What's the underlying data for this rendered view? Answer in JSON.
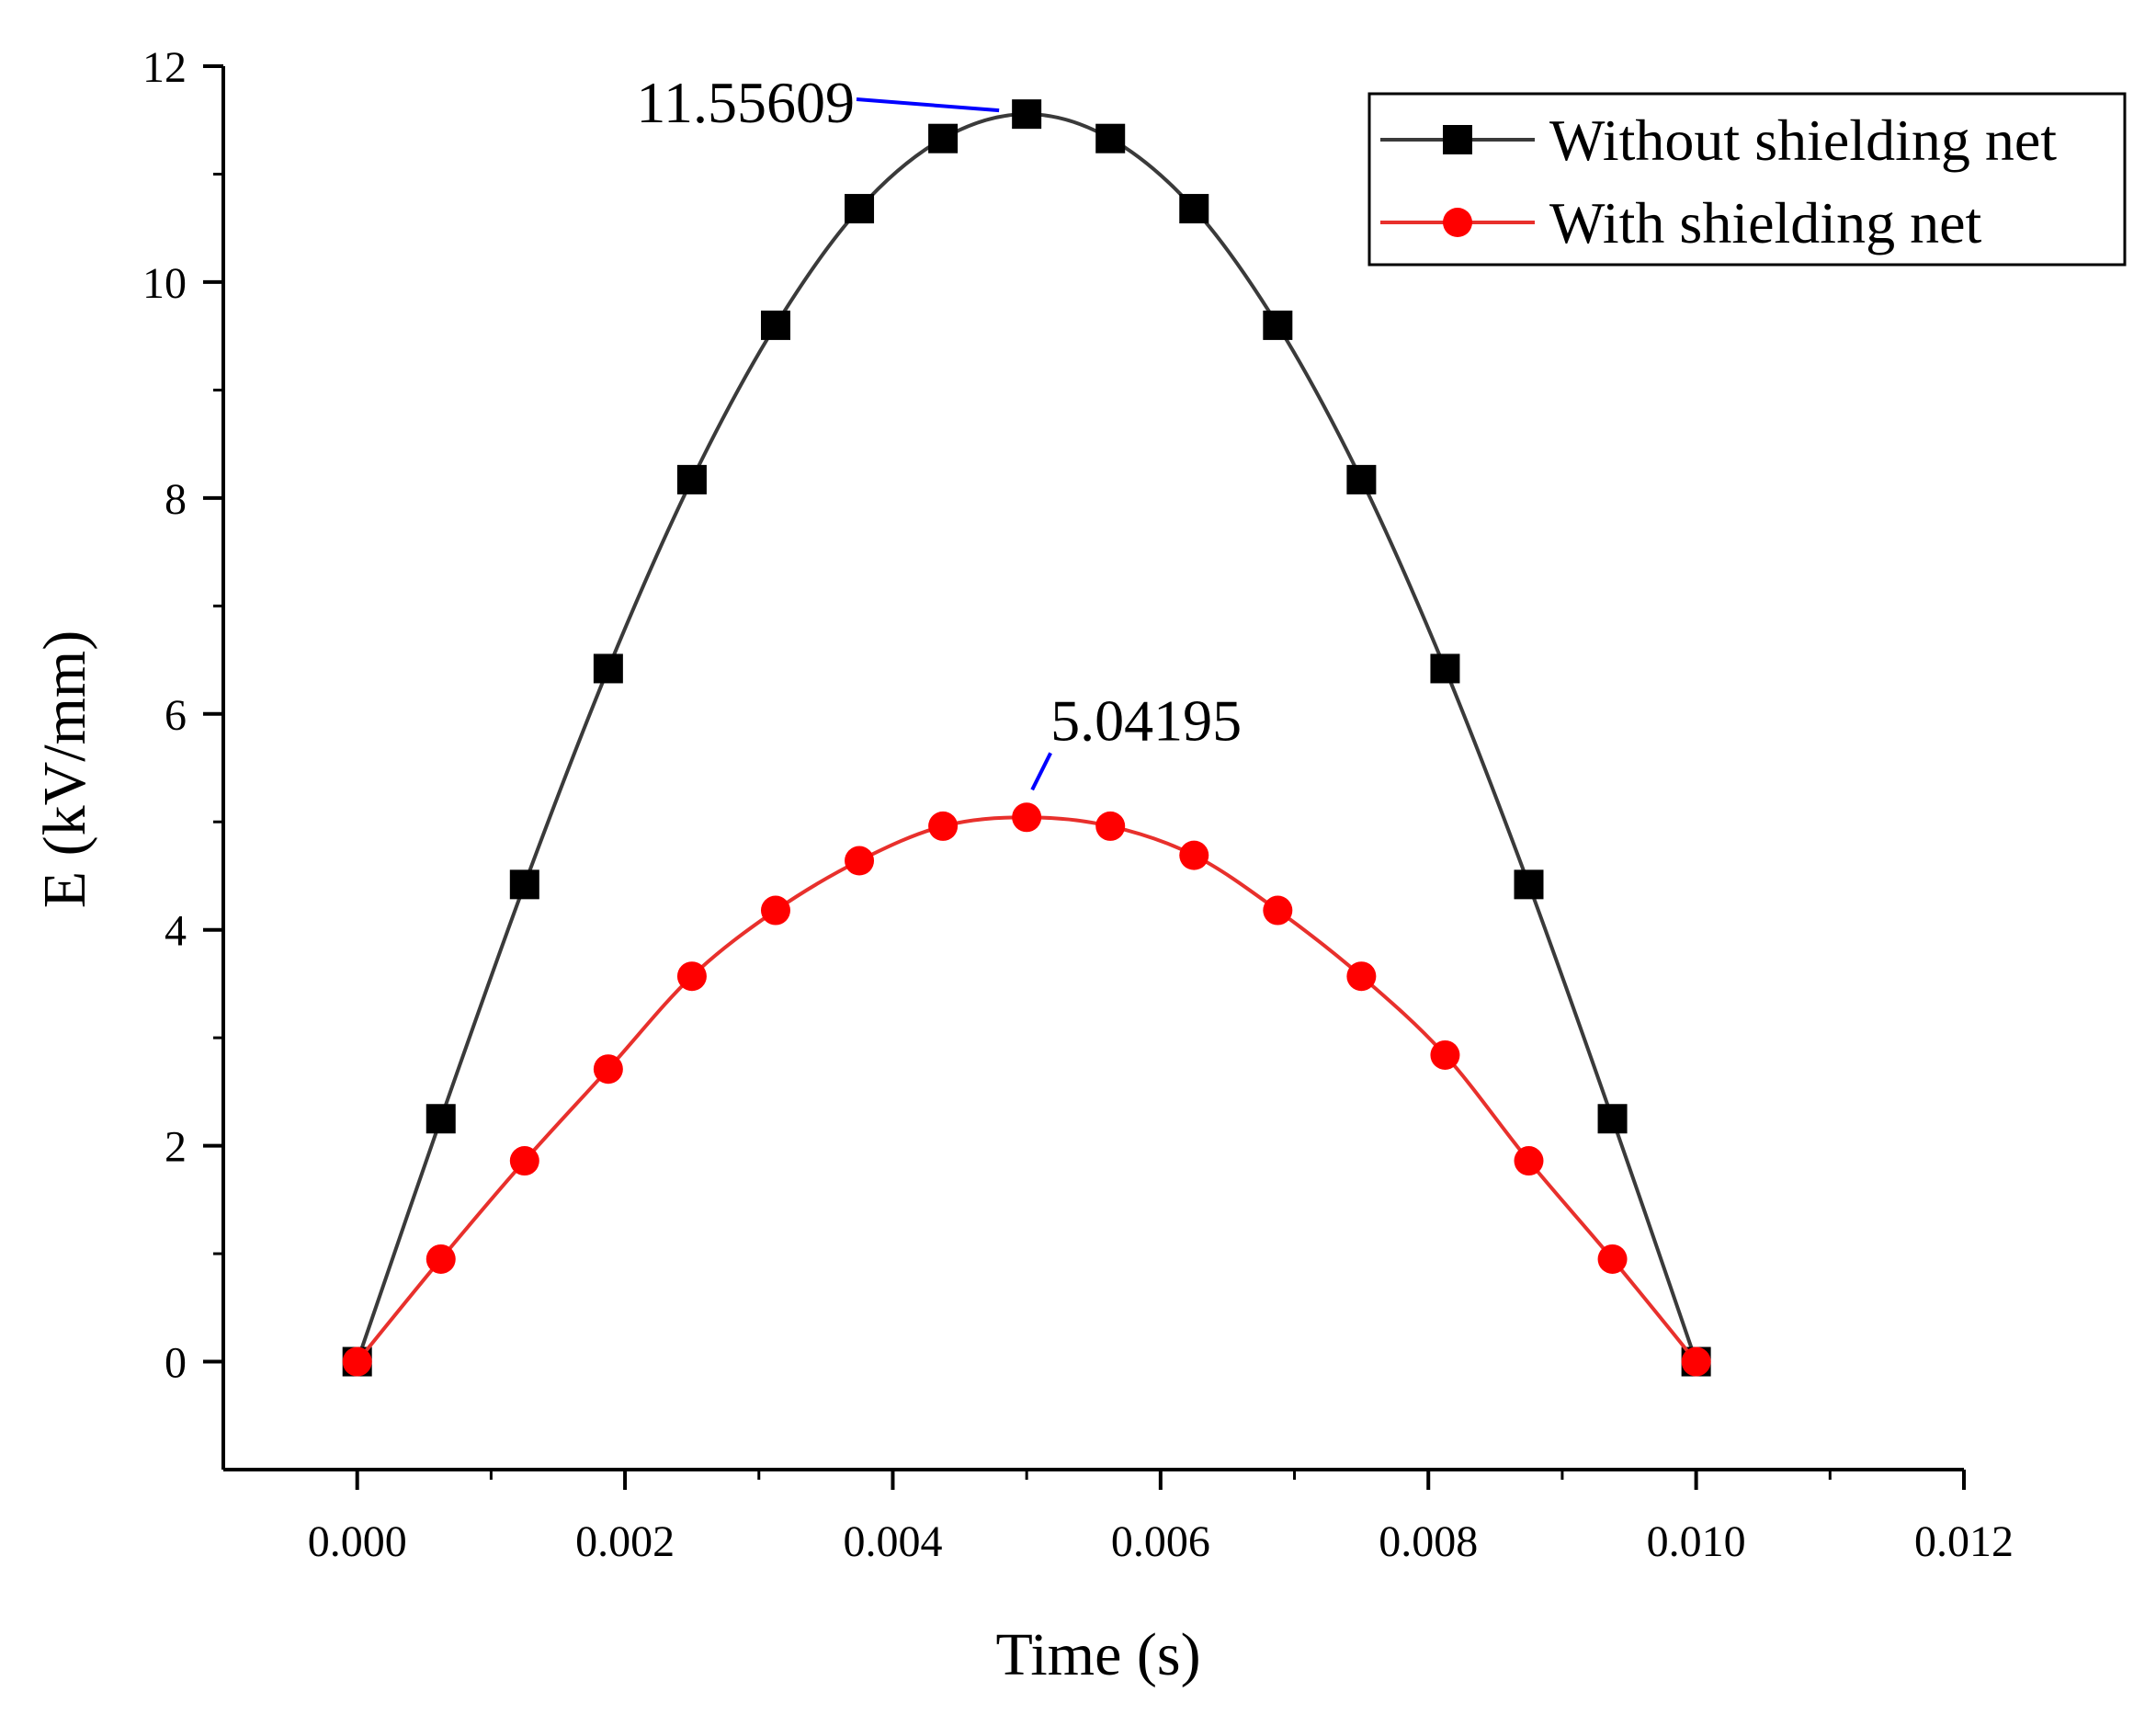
{
  "chart_data": {
    "type": "line",
    "title": "",
    "xlabel": "Time (s)",
    "ylabel": "E (kV/mm)",
    "xlim": [
      -0.001,
      0.012
    ],
    "ylim": [
      -1,
      12
    ],
    "xticks": [
      0.0,
      0.002,
      0.004,
      0.006,
      0.008,
      0.01,
      0.012
    ],
    "xtick_labels": [
      "0.000",
      "0.002",
      "0.004",
      "0.006",
      "0.008",
      "0.010",
      "0.012"
    ],
    "yticks": [
      0,
      2,
      4,
      6,
      8,
      10,
      12
    ],
    "ytick_labels": [
      "0",
      "2",
      "4",
      "6",
      "8",
      "10",
      "12"
    ],
    "grid": false,
    "legend_position": "top-right",
    "x": [
      0.0,
      0.000625,
      0.00125,
      0.001875,
      0.0025,
      0.003125,
      0.00375,
      0.004375,
      0.005,
      0.005625,
      0.00625,
      0.006875,
      0.0075,
      0.008125,
      0.00875,
      0.009375,
      0.01
    ],
    "series": [
      {
        "name": "Without shielding net",
        "color": "#000000",
        "line_color": "#3a3a3a",
        "marker": "square",
        "values": [
          0,
          2.25,
          4.42,
          6.42,
          8.17,
          9.6,
          10.68,
          11.33,
          11.55609,
          11.33,
          10.68,
          9.6,
          8.17,
          6.42,
          4.42,
          2.25,
          0
        ]
      },
      {
        "name": "With shielding net",
        "color": "#ff0000",
        "line_color": "#e8302c",
        "marker": "circle",
        "values": [
          0,
          0.95,
          1.86,
          2.71,
          3.57,
          4.18,
          4.64,
          4.96,
          5.04195,
          4.96,
          4.69,
          4.18,
          3.57,
          2.84,
          1.86,
          0.95,
          0
        ]
      }
    ],
    "annotations": [
      {
        "text": "11.55609",
        "x": 0.005,
        "y": 11.55609,
        "color": "#0000ff"
      },
      {
        "text": "5.04195",
        "x": 0.005,
        "y": 5.04195,
        "color": "#0000ff"
      }
    ]
  }
}
